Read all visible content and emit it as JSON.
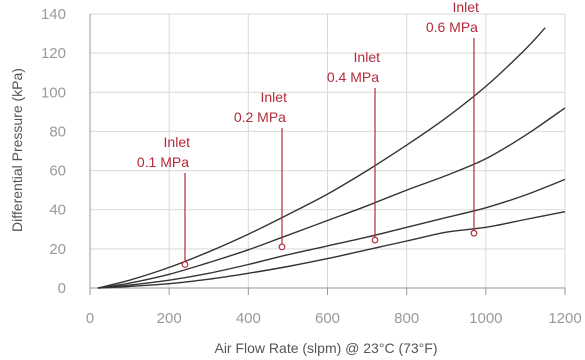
{
  "chart_data": {
    "type": "line",
    "xlabel": "Air Flow Rate (slpm) @ 23°C (73°F)",
    "ylabel": "Differential Pressure (kPa)",
    "xlim": [
      0,
      1200
    ],
    "ylim": [
      0,
      140
    ],
    "xticks": [
      0,
      200,
      400,
      600,
      800,
      1000,
      1200
    ],
    "yticks": [
      0,
      20,
      40,
      60,
      80,
      100,
      120,
      140
    ],
    "grid": true,
    "colors": {
      "line": "#333333",
      "annotation": "#b5293a",
      "grid": "#d9d9d9",
      "axis": "#999999"
    },
    "series": [
      {
        "x": [
          20,
          100,
          200,
          300,
          400,
          500,
          600,
          700,
          800,
          900,
          1000,
          1100,
          1200
        ],
        "y": [
          0,
          0.8,
          2.2,
          4.5,
          7.5,
          11,
          15,
          19.5,
          24,
          28.5,
          31,
          35,
          39
        ]
      },
      {
        "x": [
          20,
          100,
          200,
          300,
          400,
          500,
          600,
          700,
          800,
          900,
          1000,
          1100,
          1200
        ],
        "y": [
          0,
          1.5,
          4,
          7.5,
          12,
          17,
          21.5,
          26,
          31,
          36,
          41,
          47.5,
          55.5
        ]
      },
      {
        "x": [
          20,
          100,
          200,
          300,
          400,
          500,
          600,
          700,
          800,
          900,
          1000,
          1100,
          1200
        ],
        "y": [
          0,
          2.5,
          7,
          13,
          19.5,
          27,
          34.5,
          42,
          50,
          57.5,
          66,
          78,
          92
        ]
      },
      {
        "x": [
          20,
          100,
          200,
          300,
          400,
          500,
          600,
          700,
          800,
          900,
          1000,
          1100,
          1150
        ],
        "y": [
          0,
          4,
          10.5,
          18.5,
          27.5,
          37.5,
          48,
          60,
          73,
          87,
          103,
          122,
          133
        ]
      }
    ],
    "annotations": [
      {
        "line1": "Inlet",
        "line2": "0.1 MPa",
        "x": 240,
        "y": 12
      },
      {
        "line1": "Inlet",
        "line2": "0.2 MPa",
        "x": 485,
        "y": 21
      },
      {
        "line1": "Inlet",
        "line2": "0.4 MPa",
        "x": 720,
        "y": 24.5
      },
      {
        "line1": "Inlet",
        "line2": "0.6 MPa",
        "x": 970,
        "y": 28
      }
    ]
  }
}
